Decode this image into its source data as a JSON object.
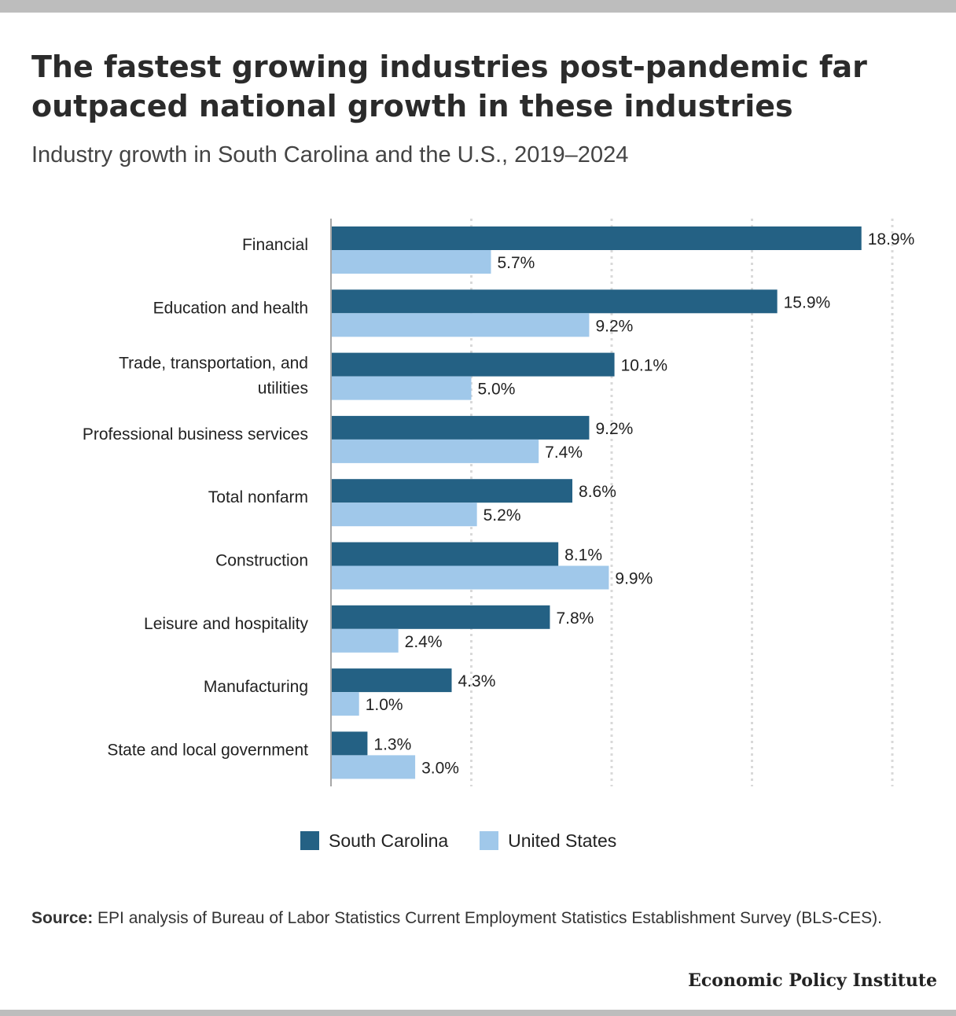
{
  "title": "The fastest growing industries post-pandemic far outpaced national growth in these industries",
  "subtitle": "Industry growth in South Carolina and the U.S., 2019–2024",
  "source_label": "Source:",
  "source_text": "EPI analysis of Bureau of Labor Statistics Current Employment Statistics Establishment Survey (BLS-CES).",
  "brand": "Economic Policy Institute",
  "colors": {
    "south_carolina": "#246184",
    "united_states": "#a0c8ea"
  },
  "chart_data": {
    "type": "bar",
    "orientation": "horizontal",
    "categories": [
      [
        "Financial"
      ],
      [
        "Education and health"
      ],
      [
        "Trade, transportation, and",
        "utilities"
      ],
      [
        "Professional business services"
      ],
      [
        "Total nonfarm"
      ],
      [
        "Construction"
      ],
      [
        "Leisure and hospitality"
      ],
      [
        "Manufacturing"
      ],
      [
        "State and local government"
      ]
    ],
    "series": [
      {
        "name": "South Carolina",
        "values": [
          18.9,
          15.9,
          10.1,
          9.2,
          8.6,
          8.1,
          7.8,
          4.3,
          1.3
        ],
        "labels": [
          "18.9%",
          "15.9%",
          "10.1%",
          "9.2%",
          "8.6%",
          "8.1%",
          "7.8%",
          "4.3%",
          "1.3%"
        ]
      },
      {
        "name": "United States",
        "values": [
          5.7,
          9.2,
          5.0,
          7.4,
          5.2,
          9.9,
          2.4,
          1.0,
          3.0
        ],
        "labels": [
          "5.7%",
          "9.2%",
          "5.0%",
          "7.4%",
          "5.2%",
          "9.9%",
          "2.4%",
          "1.0%",
          "3.0%"
        ]
      }
    ],
    "xlim": [
      0,
      20
    ],
    "grid_values": [
      5,
      10,
      15,
      20
    ],
    "grid": true,
    "legend_position": "bottom"
  }
}
